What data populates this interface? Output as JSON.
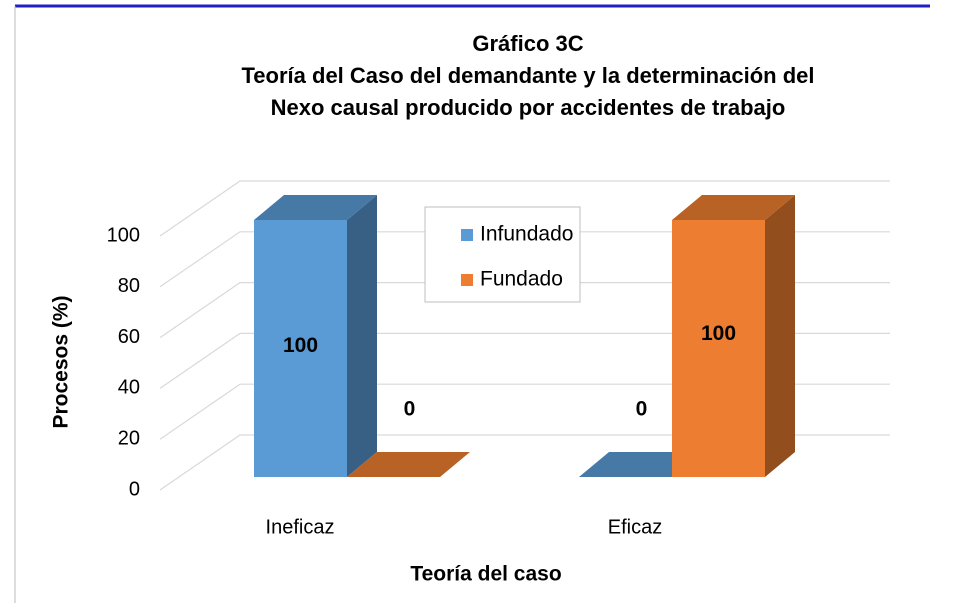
{
  "chart_data": {
    "type": "bar3d",
    "title": [
      "Gráfico 3C",
      "Teoría del Caso del demandante y la determinación del",
      "Nexo causal producido por accidentes de trabajo"
    ],
    "x_label": "Teoría del caso",
    "y_label": "Procesos (%)",
    "categories": [
      "Ineficaz",
      "Eficaz"
    ],
    "series": [
      {
        "name": "Infundado",
        "color": "#5b9bd5",
        "values": [
          100,
          0
        ]
      },
      {
        "name": "Fundado",
        "color": "#ed7d31",
        "values": [
          0,
          100
        ]
      }
    ],
    "ylim": [
      0,
      100
    ],
    "yticks": [
      0,
      20,
      40,
      60,
      80,
      100
    ],
    "grid": true,
    "legend": "inside-center"
  }
}
